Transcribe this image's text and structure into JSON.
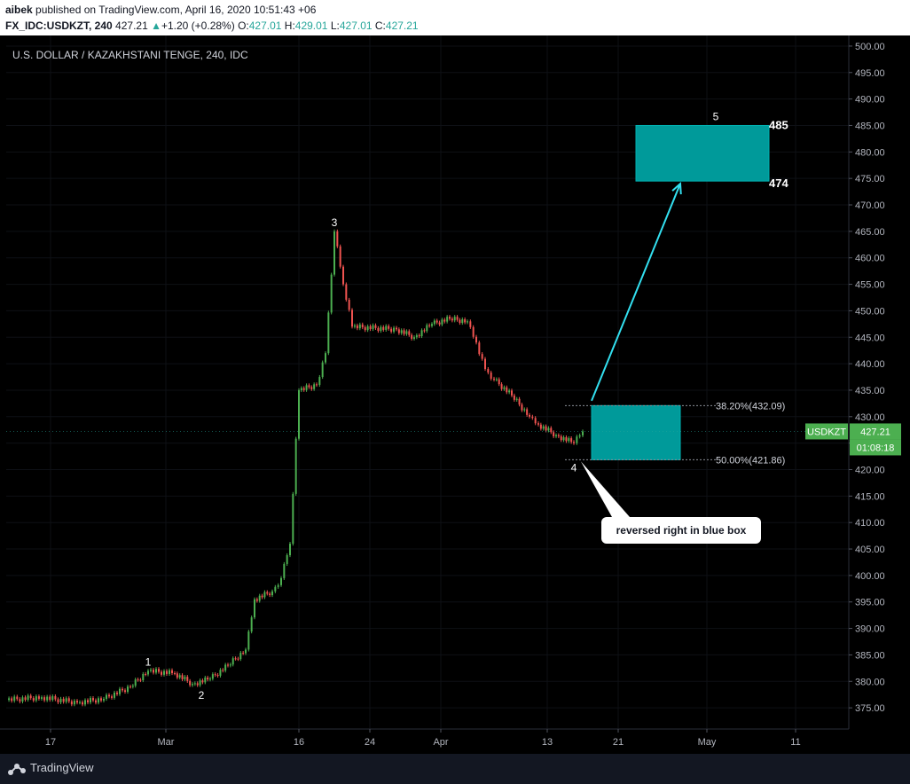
{
  "header": {
    "author": "aibek",
    "published_text": "published on TradingView.com, April 16, 2020 10:51:43 +06",
    "symbol": "FX_IDC:USDKZT, 240",
    "last": "427.21",
    "change": "+1.20 (+0.28%)",
    "o_label": "O:",
    "o_value": "427.01",
    "h_label": "H:",
    "h_value": "429.01",
    "l_label": "L:",
    "l_value": "427.01",
    "c_label": "C:",
    "c_value": "427.21"
  },
  "footer": {
    "brand": "TradingView"
  },
  "colors": {
    "bg": "#000000",
    "up": "#4caf50",
    "down": "#ef5350",
    "zone": "#009a9a",
    "arrow": "#33e0f0"
  },
  "chart_data": {
    "type": "candlestick",
    "title": "U.S. DOLLAR / KAZAKHSTANI TENGE, 240, IDC",
    "ylim": [
      371,
      502
    ],
    "y_ticks": [
      "500.00",
      "495.00",
      "490.00",
      "485.00",
      "480.00",
      "475.00",
      "470.00",
      "465.00",
      "460.00",
      "455.00",
      "450.00",
      "445.00",
      "440.00",
      "435.00",
      "430.00",
      "425.00",
      "420.00",
      "415.00",
      "410.00",
      "405.00",
      "400.00",
      "395.00",
      "390.00",
      "385.00",
      "380.00",
      "375.00"
    ],
    "x_ticks": [
      {
        "label": "17",
        "date": "2020-02-17"
      },
      {
        "label": "Mar",
        "date": "2020-03-01"
      },
      {
        "label": "16",
        "date": "2020-03-16"
      },
      {
        "label": "24",
        "date": "2020-03-24"
      },
      {
        "label": "Apr",
        "date": "2020-04-01"
      },
      {
        "label": "13",
        "date": "2020-04-13"
      },
      {
        "label": "21",
        "date": "2020-04-21"
      },
      {
        "label": "May",
        "date": "2020-05-01"
      },
      {
        "label": "11",
        "date": "2020-05-11"
      }
    ],
    "price_path": [
      [
        "2020-02-12",
        376.5
      ],
      [
        "2020-02-16",
        377.0
      ],
      [
        "2020-02-20",
        376.0
      ],
      [
        "2020-02-23",
        376.7
      ],
      [
        "2020-02-26",
        379.0
      ],
      [
        "2020-02-28",
        382.0
      ],
      [
        "2020-03-02",
        381.5
      ],
      [
        "2020-03-04",
        379.5
      ],
      [
        "2020-03-06",
        380.5
      ],
      [
        "2020-03-08",
        383.0
      ],
      [
        "2020-03-10",
        386.0
      ],
      [
        "2020-03-11",
        395.5
      ],
      [
        "2020-03-13",
        397.0
      ],
      [
        "2020-03-14",
        399.5
      ],
      [
        "2020-03-15",
        406.0
      ],
      [
        "2020-03-16",
        435.0
      ],
      [
        "2020-03-18",
        436.0
      ],
      [
        "2020-03-19",
        442.0
      ],
      [
        "2020-03-20",
        465.0
      ],
      [
        "2020-03-21",
        455.0
      ],
      [
        "2020-03-22",
        447.0
      ],
      [
        "2020-03-27",
        446.5
      ],
      [
        "2020-03-29",
        445.0
      ],
      [
        "2020-03-31",
        447.5
      ],
      [
        "2020-04-02",
        448.5
      ],
      [
        "2020-04-04",
        448.0
      ],
      [
        "2020-04-05",
        444.0
      ],
      [
        "2020-04-06",
        439.0
      ],
      [
        "2020-04-07",
        437.0
      ],
      [
        "2020-04-09",
        434.0
      ],
      [
        "2020-04-11",
        430.0
      ],
      [
        "2020-04-12",
        428.5
      ],
      [
        "2020-04-14",
        426.5
      ],
      [
        "2020-04-16",
        425.0
      ],
      [
        "2020-04-17",
        427.2
      ]
    ],
    "wave_labels": [
      {
        "label": "1",
        "date": "2020-02-28",
        "price": 382.0,
        "pos": "above"
      },
      {
        "label": "2",
        "date": "2020-03-05",
        "price": 379.0,
        "pos": "below"
      },
      {
        "label": "3",
        "date": "2020-03-20",
        "price": 465.0,
        "pos": "above"
      },
      {
        "label": "4",
        "date": "2020-04-16",
        "price": 422.0,
        "pos": "below"
      },
      {
        "label": "5",
        "date": "2020-05-02",
        "price": 485.0,
        "pos": "above"
      }
    ],
    "fib_levels": [
      {
        "label": "38.20%(432.09)",
        "price": 432.09
      },
      {
        "label": "50.00%(421.86)",
        "price": 421.86
      }
    ],
    "zones": [
      {
        "name": "entry-zone",
        "from": "2020-04-18",
        "to": "2020-04-28",
        "low": 421.86,
        "high": 432.09
      },
      {
        "name": "target-zone",
        "from": "2020-04-23",
        "to": "2020-05-08",
        "low": 474.5,
        "high": 485.0
      }
    ],
    "target_labels": [
      {
        "label": "485",
        "price": 485.0
      },
      {
        "label": "474",
        "price": 474.0
      }
    ],
    "arrow": {
      "from_date": "2020-04-18",
      "from_price": 433.0,
      "to_date": "2020-04-28",
      "to_price": 474.0
    },
    "callout": {
      "text": "reversed right in blue box",
      "anchor_date": "2020-04-18",
      "anchor_price": 421.86
    },
    "last_price": {
      "symbol": "USDKZT",
      "price_text": "427.21",
      "countdown": "01:08:18",
      "price": 427.21
    }
  }
}
